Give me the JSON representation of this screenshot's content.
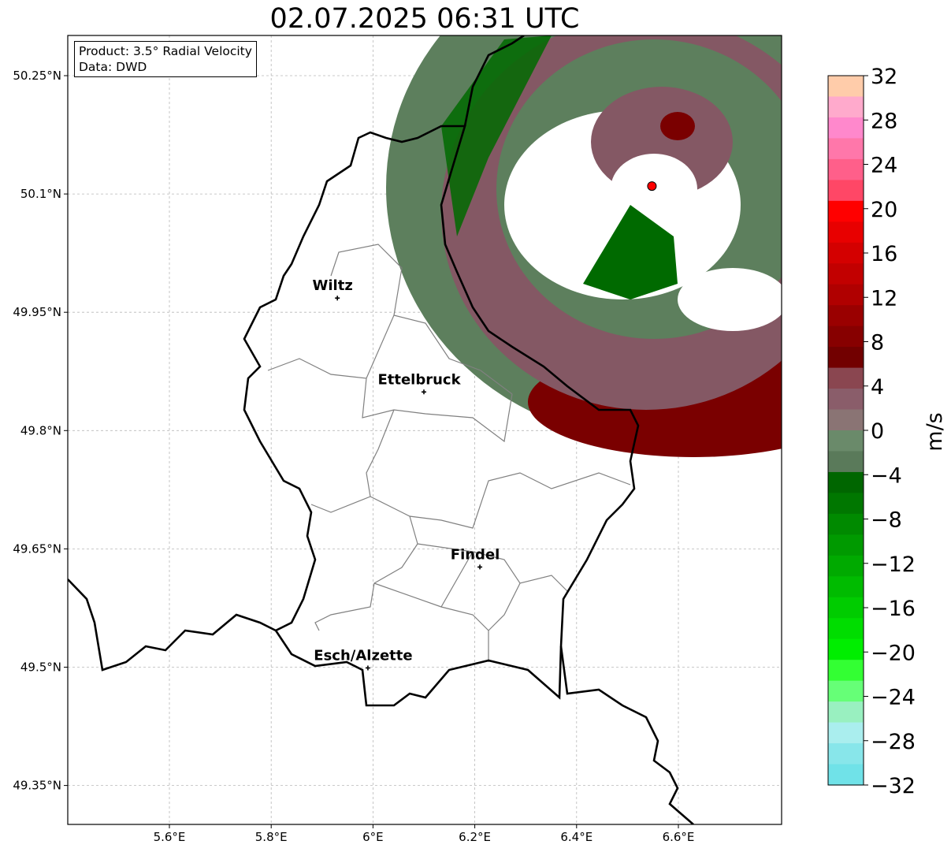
{
  "title": "02.07.2025 06:31 UTC",
  "info": {
    "product": "Product: 3.5° Radial Velocity",
    "data_source": "Data: DWD"
  },
  "map": {
    "lon_range": [
      5.4,
      6.8
    ],
    "lat_range": [
      49.3,
      50.3
    ],
    "lon_ticks": [
      {
        "value": 5.6,
        "label": "5.6°E"
      },
      {
        "value": 5.8,
        "label": "5.8°E"
      },
      {
        "value": 6.0,
        "label": "6°E"
      },
      {
        "value": 6.2,
        "label": "6.2°E"
      },
      {
        "value": 6.4,
        "label": "6.4°E"
      },
      {
        "value": 6.6,
        "label": "6.6°E"
      }
    ],
    "lat_ticks": [
      {
        "value": 50.25,
        "label": "50.25°N"
      },
      {
        "value": 50.1,
        "label": "50.1°N"
      },
      {
        "value": 49.95,
        "label": "49.95°N"
      },
      {
        "value": 49.8,
        "label": "49.8°N"
      },
      {
        "value": 49.65,
        "label": "49.65°N"
      },
      {
        "value": 49.5,
        "label": "49.5°N"
      },
      {
        "value": 49.35,
        "label": "49.35°N"
      }
    ],
    "cities": [
      {
        "name": "Wiltz",
        "lon": 5.93,
        "lat": 49.968
      },
      {
        "name": "Ettelbruck",
        "lon": 6.1,
        "lat": 49.849
      },
      {
        "name": "Findel",
        "lon": 6.21,
        "lat": 49.627
      },
      {
        "name": "Esch/Alzette",
        "lon": 5.99,
        "lat": 49.499
      }
    ],
    "radar_site": {
      "lon": 6.548,
      "lat": 50.11,
      "color": "#ff0000"
    }
  },
  "colorbar": {
    "unit": "m/s",
    "min": -32,
    "max": 32,
    "tick_values": [
      32,
      28,
      24,
      20,
      16,
      12,
      8,
      4,
      0,
      -4,
      -8,
      -12,
      -16,
      -20,
      -24,
      -28,
      -32
    ],
    "tick_labels": [
      "32",
      "28",
      "24",
      "20",
      "16",
      "12",
      "8",
      "4",
      "0",
      "−4",
      "−8",
      "−12",
      "−16",
      "−20",
      "−24",
      "−28",
      "−32"
    ],
    "colors_top_to_bottom": [
      "#ffccaa",
      "#ffaacc",
      "#ff88cc",
      "#ff77aa",
      "#ff5f8a",
      "#ff4766",
      "#ff0000",
      "#e80000",
      "#d40000",
      "#c20000",
      "#b00000",
      "#9a0000",
      "#870000",
      "#720000",
      "#8a4650",
      "#8a5d6a",
      "#8a7474",
      "#6a8a6a",
      "#5a7a5a",
      "#006600",
      "#007700",
      "#008a00",
      "#009a00",
      "#00aa00",
      "#00bb00",
      "#00cc00",
      "#00dd00",
      "#00ee00",
      "#33ff33",
      "#66ff77",
      "#99f0c0",
      "#aaeeee",
      "#88e6ea",
      "#70e2e8"
    ]
  }
}
